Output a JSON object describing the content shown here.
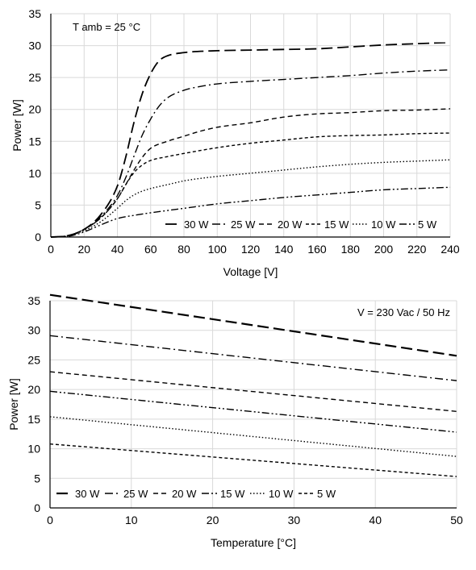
{
  "chart_data": [
    {
      "type": "line",
      "annotation": "T amb = 25 °C",
      "xlabel": "Voltage  [V]",
      "ylabel": "Power [W]",
      "xlim": [
        0,
        240
      ],
      "ylim": [
        0,
        35
      ],
      "xticks": [
        0,
        20,
        40,
        60,
        80,
        100,
        120,
        140,
        160,
        180,
        200,
        220,
        240
      ],
      "yticks": [
        0,
        5,
        10,
        15,
        20,
        25,
        30,
        35
      ],
      "grid": true,
      "legend_position": "bottom-right",
      "line_color": "#000000",
      "grid_color": "#d9d9d9",
      "series": [
        {
          "name": "30 W",
          "dash": "long-dash",
          "width": 1.8,
          "points": [
            [
              0,
              0
            ],
            [
              10,
              0.2
            ],
            [
              20,
              1.2
            ],
            [
              30,
              3.5
            ],
            [
              40,
              8
            ],
            [
              45,
              12.5
            ],
            [
              50,
              18
            ],
            [
              55,
              22.5
            ],
            [
              60,
              25.6
            ],
            [
              65,
              27.6
            ],
            [
              70,
              28.4
            ],
            [
              80,
              28.9
            ],
            [
              100,
              29.2
            ],
            [
              120,
              29.3
            ],
            [
              140,
              29.4
            ],
            [
              160,
              29.5
            ],
            [
              180,
              29.8
            ],
            [
              200,
              30.1
            ],
            [
              220,
              30.3
            ],
            [
              240,
              30.5
            ]
          ]
        },
        {
          "name": "25 W",
          "dash": "dash-dot",
          "width": 1.4,
          "points": [
            [
              0,
              0
            ],
            [
              10,
              0.2
            ],
            [
              20,
              1.2
            ],
            [
              30,
              3.2
            ],
            [
              40,
              6.5
            ],
            [
              45,
              9.3
            ],
            [
              50,
              12.7
            ],
            [
              55,
              16
            ],
            [
              60,
              18.5
            ],
            [
              65,
              20.5
            ],
            [
              70,
              21.8
            ],
            [
              80,
              23
            ],
            [
              90,
              23.6
            ],
            [
              100,
              24
            ],
            [
              120,
              24.4
            ],
            [
              140,
              24.7
            ],
            [
              160,
              25
            ],
            [
              180,
              25.3
            ],
            [
              200,
              25.7
            ],
            [
              220,
              26
            ],
            [
              240,
              26.2
            ]
          ]
        },
        {
          "name": "20 W",
          "dash": "dash",
          "width": 1.4,
          "points": [
            [
              0,
              0
            ],
            [
              10,
              0.2
            ],
            [
              20,
              1.2
            ],
            [
              30,
              3
            ],
            [
              40,
              6
            ],
            [
              45,
              8.2
            ],
            [
              50,
              10.5
            ],
            [
              55,
              12.5
            ],
            [
              60,
              13.9
            ],
            [
              70,
              15
            ],
            [
              80,
              15.8
            ],
            [
              90,
              16.6
            ],
            [
              100,
              17.2
            ],
            [
              120,
              17.9
            ],
            [
              140,
              18.8
            ],
            [
              160,
              19.3
            ],
            [
              180,
              19.5
            ],
            [
              200,
              19.8
            ],
            [
              220,
              19.9
            ],
            [
              240,
              20.1
            ]
          ]
        },
        {
          "name": "15 W",
          "dash": "short-dash",
          "width": 1.4,
          "points": [
            [
              0,
              0
            ],
            [
              10,
              0.2
            ],
            [
              20,
              1.2
            ],
            [
              30,
              3
            ],
            [
              40,
              6
            ],
            [
              45,
              8.2
            ],
            [
              50,
              10.1
            ],
            [
              55,
              11.3
            ],
            [
              60,
              12
            ],
            [
              70,
              12.6
            ],
            [
              80,
              13.1
            ],
            [
              100,
              14
            ],
            [
              120,
              14.7
            ],
            [
              140,
              15.2
            ],
            [
              160,
              15.7
            ],
            [
              180,
              15.9
            ],
            [
              200,
              16
            ],
            [
              220,
              16.2
            ],
            [
              240,
              16.3
            ]
          ]
        },
        {
          "name": "10 W",
          "dash": "dot",
          "width": 1.4,
          "points": [
            [
              0,
              0
            ],
            [
              10,
              0.2
            ],
            [
              20,
              1
            ],
            [
              30,
              2.4
            ],
            [
              40,
              4.5
            ],
            [
              45,
              5.7
            ],
            [
              50,
              6.6
            ],
            [
              55,
              7.2
            ],
            [
              60,
              7.6
            ],
            [
              70,
              8.2
            ],
            [
              80,
              8.8
            ],
            [
              100,
              9.5
            ],
            [
              120,
              10
            ],
            [
              140,
              10.5
            ],
            [
              160,
              11
            ],
            [
              180,
              11.4
            ],
            [
              200,
              11.7
            ],
            [
              220,
              11.9
            ],
            [
              240,
              12.1
            ]
          ]
        },
        {
          "name": "5 W",
          "dash": "dash-dot-dot",
          "width": 1.4,
          "points": [
            [
              0,
              0
            ],
            [
              10,
              0.1
            ],
            [
              20,
              0.8
            ],
            [
              30,
              1.9
            ],
            [
              40,
              2.9
            ],
            [
              50,
              3.4
            ],
            [
              60,
              3.8
            ],
            [
              80,
              4.5
            ],
            [
              100,
              5.2
            ],
            [
              120,
              5.7
            ],
            [
              140,
              6.2
            ],
            [
              160,
              6.6
            ],
            [
              180,
              7
            ],
            [
              200,
              7.4
            ],
            [
              220,
              7.6
            ],
            [
              240,
              7.8
            ]
          ]
        }
      ]
    },
    {
      "type": "line",
      "annotation": "V = 230 Vac  / 50 Hz",
      "xlabel": "Temperature [°C]",
      "ylabel": "Power [W]",
      "xlim": [
        0,
        50
      ],
      "ylim": [
        0,
        35
      ],
      "xticks": [
        0,
        10,
        20,
        30,
        40,
        50
      ],
      "yticks": [
        0,
        5,
        10,
        15,
        20,
        25,
        30,
        35
      ],
      "grid": true,
      "legend_position": "bottom-left",
      "line_color": "#000000",
      "grid_color": "#d9d9d9",
      "series": [
        {
          "name": "30 W",
          "dash": "long-dash",
          "width": 2.2,
          "points": [
            [
              0,
              36
            ],
            [
              50,
              25.7
            ]
          ]
        },
        {
          "name": "25 W",
          "dash": "dash-dot",
          "width": 1.4,
          "points": [
            [
              0,
              29.1
            ],
            [
              50,
              21.5
            ]
          ]
        },
        {
          "name": "20 W",
          "dash": "dash",
          "width": 1.4,
          "points": [
            [
              0,
              23
            ],
            [
              50,
              16.3
            ]
          ]
        },
        {
          "name": "15 W",
          "dash": "dash-dot-dot",
          "width": 1.4,
          "points": [
            [
              0,
              19.7
            ],
            [
              50,
              12.8
            ]
          ]
        },
        {
          "name": "10 W",
          "dash": "dot",
          "width": 1.4,
          "points": [
            [
              0,
              15.4
            ],
            [
              50,
              8.7
            ]
          ]
        },
        {
          "name": "5 W",
          "dash": "short-dash",
          "width": 1.4,
          "points": [
            [
              0,
              10.8
            ],
            [
              50,
              5.3
            ]
          ]
        }
      ]
    }
  ]
}
